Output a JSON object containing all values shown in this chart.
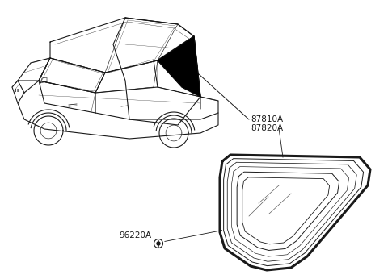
{
  "background_color": "#ffffff",
  "line_color": "#1a1a1a",
  "label_87810A": "87810A",
  "label_87820A": "87820A",
  "label_96220A": "96220A",
  "label_font_size": 7.5,
  "fig_width": 4.8,
  "fig_height": 3.46,
  "dpi": 100
}
